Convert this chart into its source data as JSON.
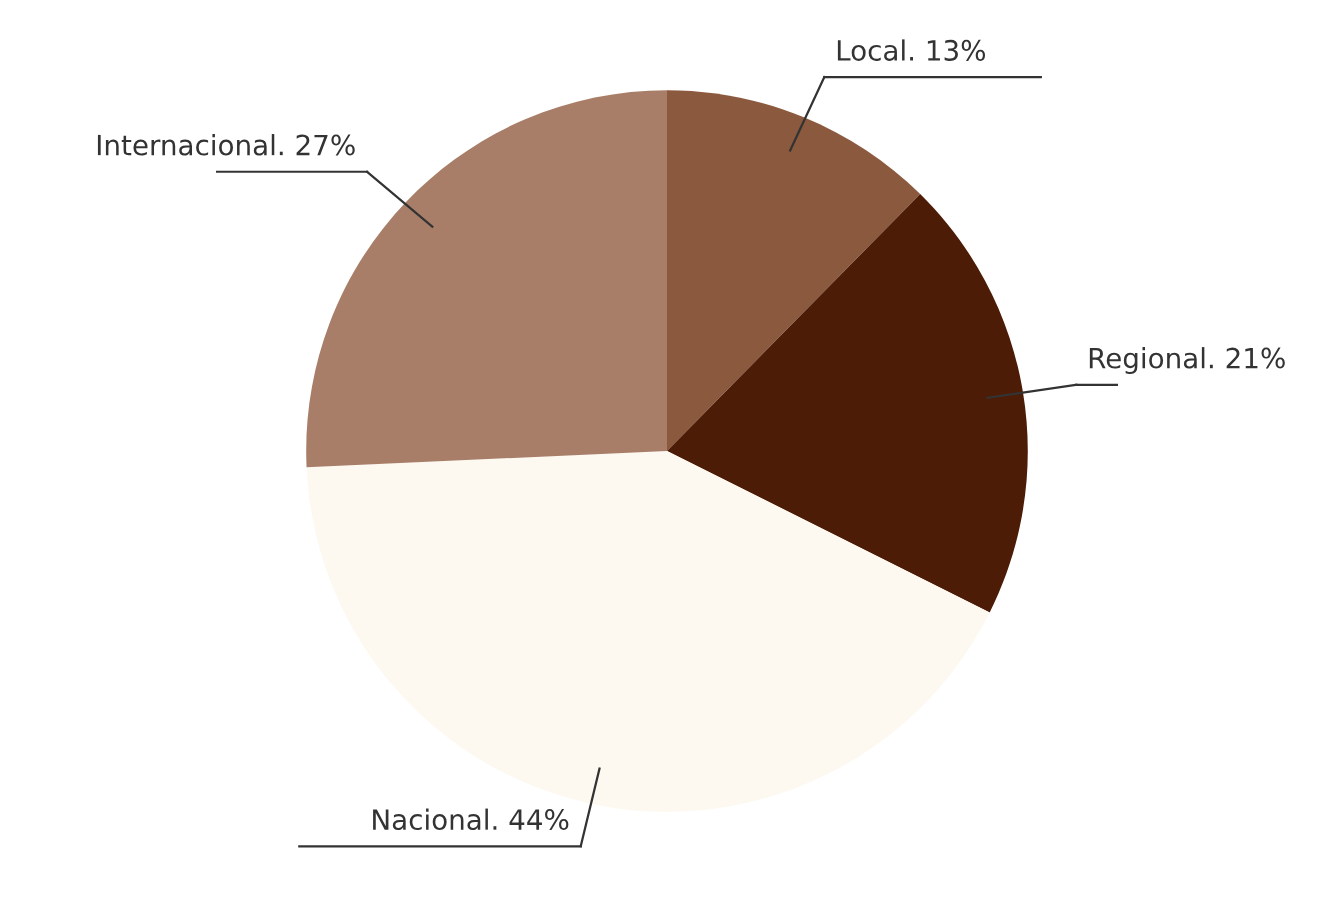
{
  "chart_data": {
    "type": "pie",
    "categories": [
      "Local. 13%",
      "Regional. 21%",
      "Nacional. 44%",
      "Internacional. 27%"
    ],
    "values": [
      13,
      21,
      44,
      27
    ],
    "colors": [
      "#8b5a3e",
      "#4d1c06",
      "#fdf9f1",
      "#a87e68"
    ]
  }
}
